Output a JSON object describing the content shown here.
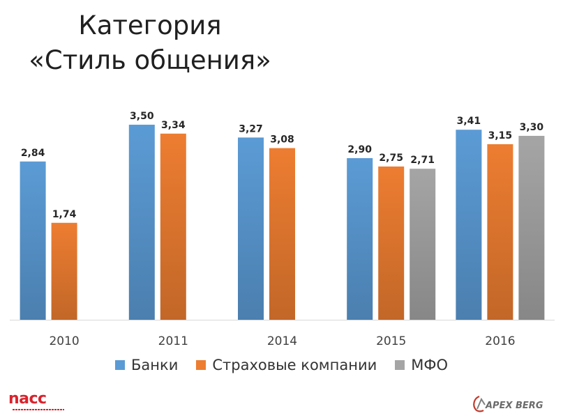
{
  "title": {
    "line1": "Категория",
    "line2": "«Стиль общения»"
  },
  "chart_data": {
    "type": "bar",
    "categories": [
      "2010",
      "2011",
      "2014",
      "2015",
      "2016"
    ],
    "series": [
      {
        "name": "Банки",
        "color": "#5b9bd5",
        "values": [
          2.84,
          3.5,
          3.27,
          2.9,
          3.41
        ],
        "labels": [
          "2,84",
          "3,50",
          "3,27",
          "2,90",
          "3,41"
        ]
      },
      {
        "name": "Страховые компании",
        "color": "#ed7d31",
        "values": [
          1.74,
          3.34,
          3.08,
          2.75,
          3.15
        ],
        "labels": [
          "1,74",
          "3,34",
          "3,08",
          "2,75",
          "3,15"
        ]
      },
      {
        "name": "МФО",
        "color": "#a5a5a5",
        "values": [
          null,
          null,
          null,
          2.71,
          3.3
        ],
        "labels": [
          null,
          null,
          null,
          "2,71",
          "3,30"
        ]
      }
    ],
    "ylim": [
      0,
      4
    ],
    "grid": false,
    "legend_position": "bottom",
    "xlabel": "",
    "ylabel": ""
  },
  "logos": {
    "left_text": "nacc",
    "right_text": "APEX BERG"
  }
}
